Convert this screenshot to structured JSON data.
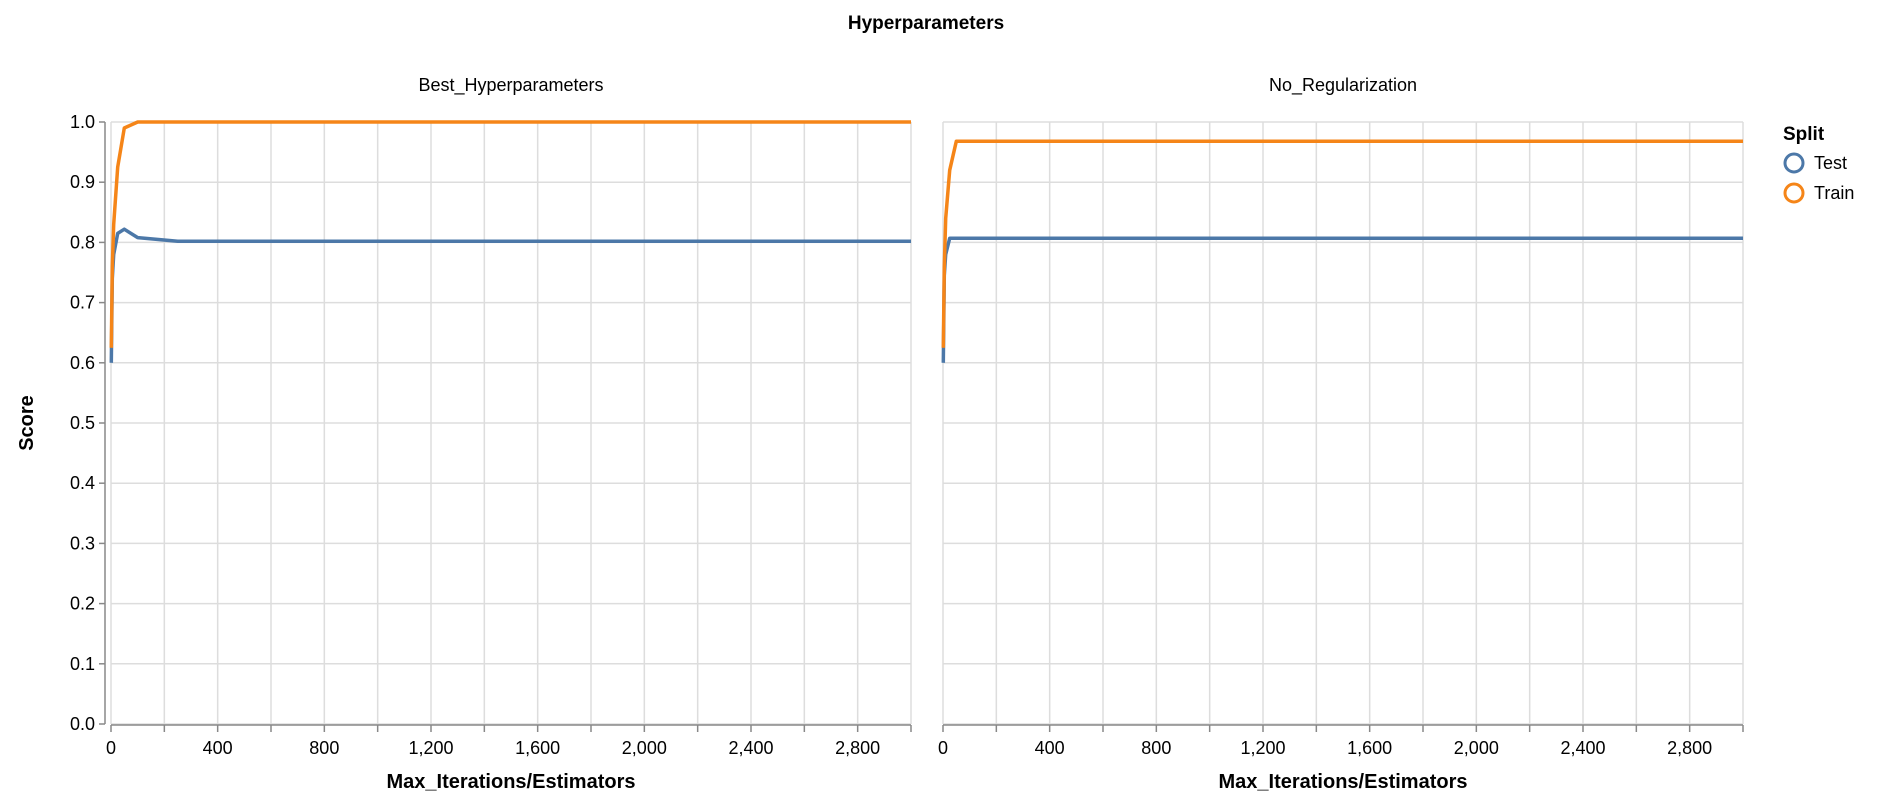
{
  "chart_data": {
    "type": "line",
    "title": "Hyperparameters",
    "ylabel": "Score",
    "xlabel": "Max_Iterations/Estimators",
    "ylim": [
      0,
      1
    ],
    "xlim": [
      0,
      3000
    ],
    "y_ticks": [
      0.0,
      0.1,
      0.2,
      0.3,
      0.4,
      0.5,
      0.6,
      0.7,
      0.8,
      0.9,
      1.0
    ],
    "y_tick_labels": [
      "0.0",
      "0.1",
      "0.2",
      "0.3",
      "0.4",
      "0.5",
      "0.6",
      "0.7",
      "0.8",
      "0.9",
      "1.0"
    ],
    "x_ticks": [
      0,
      200,
      400,
      600,
      800,
      1000,
      1200,
      1400,
      1600,
      1800,
      2000,
      2200,
      2400,
      2600,
      2800,
      3000
    ],
    "x_tick_labels": [
      {
        "value": 0,
        "label": "0"
      },
      {
        "value": 400,
        "label": "400"
      },
      {
        "value": 800,
        "label": "800"
      },
      {
        "value": 1200,
        "label": "1,200"
      },
      {
        "value": 1600,
        "label": "1,600"
      },
      {
        "value": 2000,
        "label": "2,000"
      },
      {
        "value": 2400,
        "label": "2,400"
      },
      {
        "value": 2800,
        "label": "2,800"
      }
    ],
    "grid": true,
    "legend": {
      "title": "Split",
      "position": "right",
      "entries": [
        {
          "name": "Test",
          "color": "#4c78a8"
        },
        {
          "name": "Train",
          "color": "#f58518"
        }
      ]
    },
    "facets": [
      {
        "title": "Best_Hyperparameters",
        "series": [
          {
            "name": "Test",
            "color": "#4c78a8",
            "x": [
              1,
              5,
              10,
              25,
              50,
              100,
              250,
              500,
              1000,
              3000
            ],
            "y": [
              0.6,
              0.74,
              0.78,
              0.815,
              0.822,
              0.808,
              0.802,
              0.802,
              0.802,
              0.802
            ]
          },
          {
            "name": "Train",
            "color": "#f58518",
            "x": [
              1,
              5,
              10,
              25,
              50,
              100,
              250,
              500,
              1000,
              3000
            ],
            "y": [
              0.625,
              0.76,
              0.83,
              0.925,
              0.99,
              1.0,
              1.0,
              1.0,
              1.0,
              1.0
            ]
          }
        ]
      },
      {
        "title": "No_Regularization",
        "series": [
          {
            "name": "Test",
            "color": "#4c78a8",
            "x": [
              1,
              5,
              10,
              25,
              50,
              100,
              250,
              500,
              1000,
              3000
            ],
            "y": [
              0.6,
              0.745,
              0.78,
              0.807,
              0.807,
              0.807,
              0.807,
              0.807,
              0.807,
              0.807
            ]
          },
          {
            "name": "Train",
            "color": "#f58518",
            "x": [
              1,
              5,
              10,
              25,
              50,
              100,
              250,
              500,
              1000,
              3000
            ],
            "y": [
              0.625,
              0.76,
              0.84,
              0.92,
              0.968,
              0.968,
              0.968,
              0.968,
              0.968,
              0.968
            ]
          }
        ]
      }
    ]
  }
}
